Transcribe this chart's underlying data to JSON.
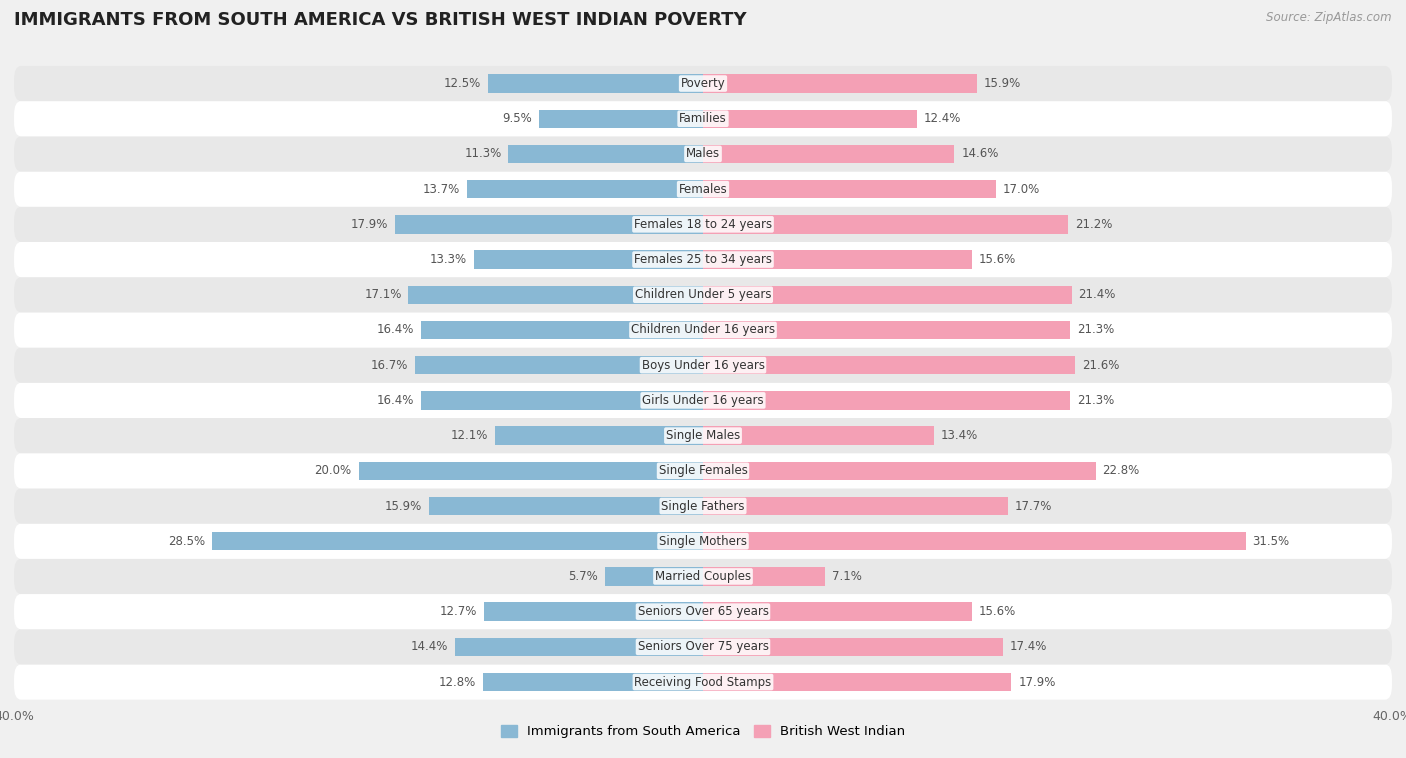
{
  "title": "IMMIGRANTS FROM SOUTH AMERICA VS BRITISH WEST INDIAN POVERTY",
  "source": "Source: ZipAtlas.com",
  "categories": [
    "Poverty",
    "Families",
    "Males",
    "Females",
    "Females 18 to 24 years",
    "Females 25 to 34 years",
    "Children Under 5 years",
    "Children Under 16 years",
    "Boys Under 16 years",
    "Girls Under 16 years",
    "Single Males",
    "Single Females",
    "Single Fathers",
    "Single Mothers",
    "Married Couples",
    "Seniors Over 65 years",
    "Seniors Over 75 years",
    "Receiving Food Stamps"
  ],
  "south_america": [
    12.5,
    9.5,
    11.3,
    13.7,
    17.9,
    13.3,
    17.1,
    16.4,
    16.7,
    16.4,
    12.1,
    20.0,
    15.9,
    28.5,
    5.7,
    12.7,
    14.4,
    12.8
  ],
  "british_west_indian": [
    15.9,
    12.4,
    14.6,
    17.0,
    21.2,
    15.6,
    21.4,
    21.3,
    21.6,
    21.3,
    13.4,
    22.8,
    17.7,
    31.5,
    7.1,
    15.6,
    17.4,
    17.9
  ],
  "color_sa": "#89b8d4",
  "color_bwi": "#f4a0b5",
  "xlim_max": 40,
  "bar_height": 0.52,
  "bg_color": "#f0f0f0",
  "row_color_odd": "#ffffff",
  "row_color_even": "#e8e8e8",
  "legend_sa": "Immigrants from South America",
  "legend_bwi": "British West Indian",
  "label_fontsize": 8.5,
  "category_fontsize": 8.5,
  "title_fontsize": 13
}
